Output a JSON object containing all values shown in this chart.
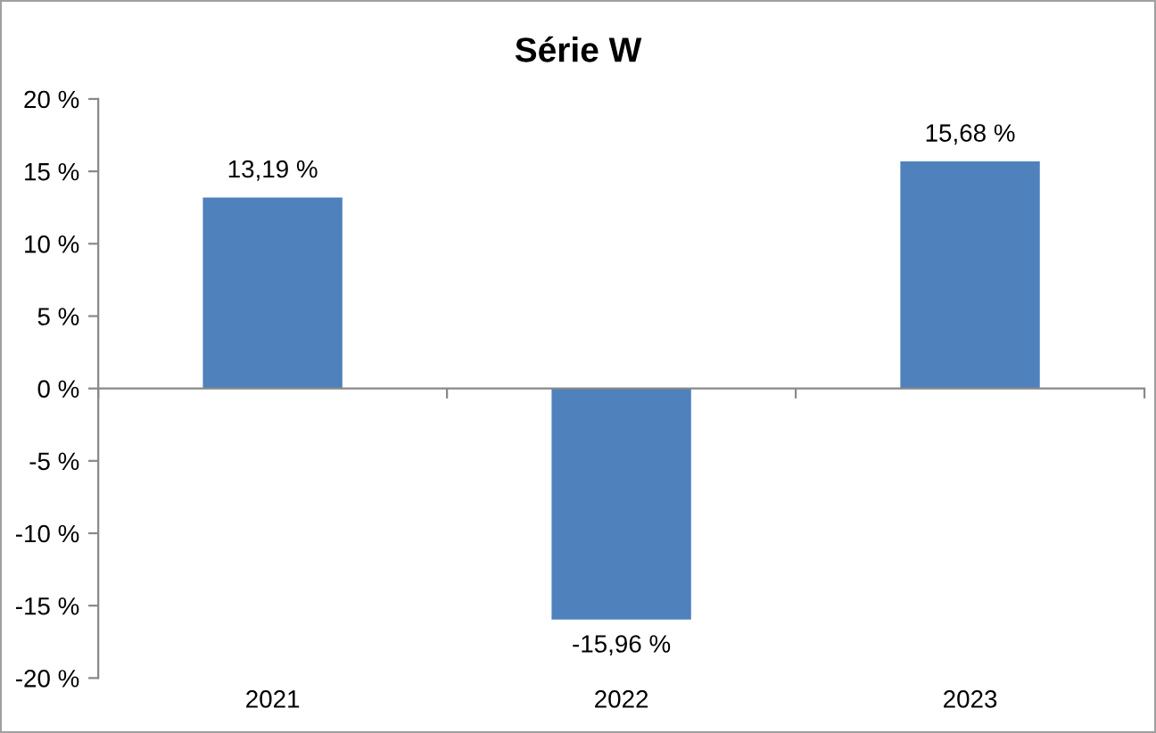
{
  "chart_data": {
    "type": "bar",
    "title": "Série W",
    "categories": [
      "2021",
      "2022",
      "2023"
    ],
    "values": [
      13.19,
      -15.96,
      15.68
    ],
    "value_labels": [
      "13,19 %",
      "-15,96 %",
      "15,68 %"
    ],
    "color": "#4f81bd",
    "ylim": [
      -20,
      20
    ],
    "yticks": [
      {
        "value": -20,
        "label": "-20 %"
      },
      {
        "value": -15,
        "label": "-15 %"
      },
      {
        "value": -10,
        "label": "-10 %"
      },
      {
        "value": -5,
        "label": "-5 %"
      },
      {
        "value": 0,
        "label": "0 %"
      },
      {
        "value": 5,
        "label": "5 %"
      },
      {
        "value": 10,
        "label": "10 %"
      },
      {
        "value": 15,
        "label": "15 %"
      },
      {
        "value": 20,
        "label": "20 %"
      }
    ],
    "legend": false
  }
}
